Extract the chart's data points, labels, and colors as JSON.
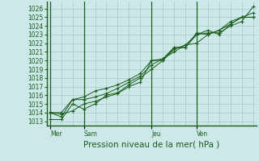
{
  "title": "Pression niveau de la mer( hPa )",
  "bg_color": "#cce8e8",
  "grid_color": "#a8c8c8",
  "line_color": "#1a5c1a",
  "spine_color": "#1a5c1a",
  "ylim": [
    1012.5,
    1026.8
  ],
  "yticks": [
    1013,
    1014,
    1015,
    1016,
    1017,
    1018,
    1019,
    1020,
    1021,
    1022,
    1023,
    1024,
    1025,
    1026
  ],
  "day_labels": [
    "Mer",
    "Sam",
    "Jeu",
    "Ven"
  ],
  "series": [
    {
      "x": [
        0,
        1,
        2,
        3,
        4,
        5,
        6,
        7,
        8,
        9,
        10,
        11,
        12,
        13,
        14,
        15,
        16,
        17,
        18
      ],
      "y": [
        1014.0,
        1013.8,
        1014.2,
        1015.0,
        1015.3,
        1015.8,
        1016.2,
        1017.0,
        1017.5,
        1020.0,
        1020.0,
        1021.5,
        1021.5,
        1023.0,
        1023.2,
        1023.2,
        1024.0,
        1024.5,
        1026.2
      ]
    },
    {
      "x": [
        0,
        1,
        2,
        3,
        4,
        5,
        6,
        7,
        8,
        9,
        10,
        11,
        12,
        13,
        14,
        15,
        16,
        17,
        18
      ],
      "y": [
        1013.2,
        1013.2,
        1015.0,
        1014.4,
        1015.0,
        1016.0,
        1016.3,
        1017.2,
        1018.0,
        1019.0,
        1020.0,
        1021.3,
        1021.8,
        1022.0,
        1023.0,
        1023.5,
        1024.2,
        1025.0,
        1025.0
      ]
    },
    {
      "x": [
        0,
        1,
        2,
        3,
        4,
        5,
        6,
        7,
        8,
        9,
        10,
        11,
        12,
        13,
        14,
        15,
        16,
        17,
        18
      ],
      "y": [
        1014.0,
        1014.0,
        1015.5,
        1015.5,
        1015.8,
        1016.2,
        1016.8,
        1017.5,
        1018.2,
        1019.5,
        1020.2,
        1021.5,
        1021.5,
        1023.2,
        1023.0,
        1023.5,
        1024.5,
        1025.0,
        1025.5
      ]
    },
    {
      "x": [
        0,
        1,
        2,
        3,
        4,
        5,
        6,
        7,
        8,
        9,
        10,
        11,
        12,
        13,
        14,
        15,
        16,
        17,
        18
      ],
      "y": [
        1014.0,
        1013.5,
        1015.5,
        1015.8,
        1016.5,
        1016.8,
        1017.2,
        1017.8,
        1018.5,
        1020.0,
        1020.2,
        1021.0,
        1021.8,
        1023.0,
        1023.5,
        1023.0,
        1024.2,
        1025.0,
        1025.0
      ]
    }
  ],
  "n_points": 19,
  "x_day_vlines": [
    0,
    3,
    9,
    13
  ],
  "label_fontsize": 5.5,
  "title_fontsize": 7.5
}
